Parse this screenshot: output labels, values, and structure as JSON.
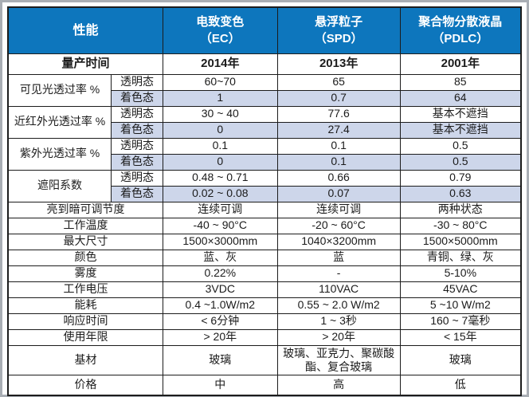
{
  "page": {
    "frame_color": "#a9aeb4",
    "background": "#ffffff"
  },
  "table": {
    "header": {
      "bg": "#0d76bd",
      "text_color": "#ffffff",
      "perf_label": "性能",
      "columns": [
        {
          "name": "电致变色",
          "abbr": "（EC）"
        },
        {
          "name": "悬浮粒子",
          "abbr": "（SPD）"
        },
        {
          "name": "聚合物分散液晶",
          "abbr": "（PDLC）"
        }
      ]
    },
    "shade_color": "#cdd6ea",
    "production_row": {
      "label": "量产时间",
      "values": [
        "2014年",
        "2013年",
        "2001年"
      ]
    },
    "paired_rows": [
      {
        "label": "可见光透过率 %",
        "sub": [
          {
            "state": "透明态",
            "values": [
              "60~70",
              "65",
              "85"
            ]
          },
          {
            "state": "着色态",
            "values": [
              "1",
              "0.7",
              "64"
            ]
          }
        ]
      },
      {
        "label": "近红外光透过率 %",
        "sub": [
          {
            "state": "透明态",
            "values": [
              "30 ~ 40",
              "77.6",
              "基本不遮挡"
            ]
          },
          {
            "state": "着色态",
            "values": [
              "0",
              "27.4",
              "基本不遮挡"
            ]
          }
        ]
      },
      {
        "label": "紫外光透过率 %",
        "sub": [
          {
            "state": "透明态",
            "values": [
              "0.1",
              "0.1",
              "0.5"
            ]
          },
          {
            "state": "着色态",
            "values": [
              "0",
              "0.1",
              "0.5"
            ]
          }
        ]
      },
      {
        "label": "遮阳系数",
        "sub": [
          {
            "state": "透明态",
            "values": [
              "0.48 ~ 0.71",
              "0.66",
              "0.79"
            ]
          },
          {
            "state": "着色态",
            "values": [
              "0.02 ~ 0.08",
              "0.07",
              "0.63"
            ]
          }
        ]
      }
    ],
    "simple_rows": [
      {
        "label": "亮到暗可调节度",
        "values": [
          "连续可调",
          "连续可调",
          "两种状态"
        ]
      },
      {
        "label": "工作温度",
        "values": [
          "-40 ~ 90°C",
          "-20 ~ 60°C",
          "-30 ~ 80°C"
        ]
      },
      {
        "label": "最大尺寸",
        "values": [
          "1500×3000mm",
          "1040×3200mm",
          "1500×5000mm"
        ]
      },
      {
        "label": "颜色",
        "values": [
          "蓝、灰",
          "蓝",
          "青铜、绿、灰"
        ]
      },
      {
        "label": "雾度",
        "values": [
          "0.22%",
          "-",
          "5-10%"
        ]
      },
      {
        "label": "工作电压",
        "values": [
          "3VDC",
          "110VAC",
          "45VAC"
        ]
      },
      {
        "label": "能耗",
        "values": [
          "0.4 ~1.0W/m2",
          "0.55 ~ 2.0 W/m2",
          "5 ~10 W/m2"
        ]
      },
      {
        "label": "响应时间",
        "values": [
          "< 6分钟",
          "1 ~ 3秒",
          "160 ~ 7毫秒"
        ]
      },
      {
        "label": "使用年限",
        "values": [
          "> 20年",
          "> 20年",
          "< 15年"
        ]
      },
      {
        "label": "基材",
        "values": [
          "玻璃",
          "玻璃、亚克力、聚碳酸酯、复合玻璃",
          "玻璃"
        ]
      },
      {
        "label": "价格",
        "values": [
          "中",
          "高",
          "低"
        ]
      }
    ]
  }
}
